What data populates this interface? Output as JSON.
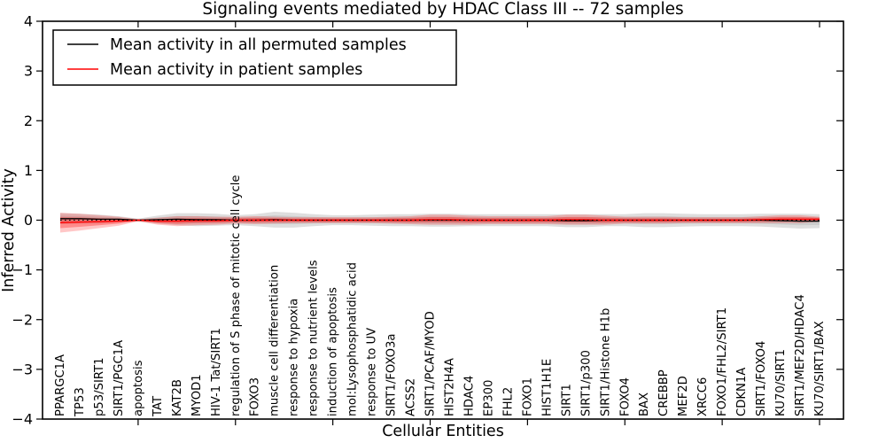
{
  "figure": {
    "title": "Signaling events mediated by HDAC Class III -- 72 samples",
    "xlabel": "Cellular Entities",
    "ylabel": "Inferred Activity"
  },
  "legend": {
    "position": "upper left",
    "entries": [
      {
        "label": "Mean activity in all permuted samples",
        "color": "#000000"
      },
      {
        "label": "Mean activity in patient samples",
        "color": "#ff0000"
      }
    ]
  },
  "chart_data": {
    "type": "line",
    "title": "Signaling events mediated by HDAC Class III -- 72 samples",
    "xlabel": "Cellular Entities",
    "ylabel": "Inferred Activity",
    "ylim": [
      -4,
      4
    ],
    "yticks": [
      4,
      3,
      2,
      1,
      0,
      -1,
      -2,
      -3,
      -4
    ],
    "ytick_labels": [
      "4",
      "3",
      "2",
      "1",
      "0",
      "−1",
      "−2",
      "−3",
      "−4"
    ],
    "grid": false,
    "legend_position": "upper left",
    "zero_line": {
      "y": 0,
      "style": "dotted",
      "color": "#000000"
    },
    "categories": [
      "PPARGC1A",
      "TP53",
      "p53/SIRT1",
      "SIRT1/PGC1A",
      "apoptosis",
      "TAT",
      "KAT2B",
      "MYOD1",
      "HIV-1 Tat/SIRT1",
      "regulation of S phase of mitotic cell cycle",
      "FOXO3",
      "muscle cell differentiation",
      "response to hypoxia",
      "response to nutrient levels",
      "induction of apoptosis",
      "mol:Lysophosphatidic acid",
      "response to UV",
      "SIRT1/FOXO3a",
      "ACSS2",
      "SIRT1/PCAF/MYOD",
      "HIST2H4A",
      "HDAC4",
      "EP300",
      "FHL2",
      "FOXO1",
      "HIST1H1E",
      "SIRT1",
      "SIRT1/p300",
      "SIRT1/Histone H1b",
      "FOXO4",
      "BAX",
      "CREBBP",
      "MEF2D",
      "XRCC6",
      "FOXO1/FHL2/SIRT1",
      "CDKN1A",
      "SIRT1/FOXO4",
      "KU70/SIRT1",
      "SIRT1/MEF2D/HDAC4",
      "KU70/SIRT1/BAX"
    ],
    "series": [
      {
        "name": "Mean activity in all permuted samples",
        "color": "#000000",
        "band_color": "#000000",
        "values": [
          0.03,
          0.03,
          0.02,
          0.02,
          0.0,
          0.01,
          0.02,
          0.01,
          0.01,
          0.0,
          0.0,
          0.01,
          0.0,
          0.0,
          0.0,
          0.0,
          0.0,
          0.0,
          0.0,
          0.0,
          0.0,
          0.0,
          0.0,
          0.0,
          0.0,
          0.0,
          -0.01,
          -0.01,
          0.0,
          0.0,
          0.0,
          0.0,
          0.0,
          0.0,
          0.0,
          0.0,
          0.0,
          -0.01,
          -0.02,
          -0.02
        ],
        "band_halfwidth": [
          0.11,
          0.1,
          0.09,
          0.06,
          0.03,
          0.08,
          0.12,
          0.13,
          0.12,
          0.1,
          0.12,
          0.16,
          0.15,
          0.12,
          0.1,
          0.1,
          0.11,
          0.12,
          0.12,
          0.13,
          0.13,
          0.12,
          0.12,
          0.12,
          0.12,
          0.12,
          0.13,
          0.13,
          0.12,
          0.12,
          0.14,
          0.14,
          0.13,
          0.12,
          0.12,
          0.12,
          0.13,
          0.14,
          0.15,
          0.14
        ]
      },
      {
        "name": "Mean activity in patient samples",
        "color": "#ff0000",
        "band_color": "#ff0000",
        "values": [
          -0.05,
          -0.04,
          -0.03,
          -0.02,
          0.0,
          -0.02,
          -0.02,
          -0.01,
          -0.01,
          0.0,
          0.0,
          0.0,
          0.0,
          0.0,
          0.0,
          0.0,
          0.0,
          0.0,
          0.0,
          0.01,
          0.01,
          0.0,
          0.0,
          0.0,
          0.0,
          0.0,
          0.01,
          0.01,
          0.0,
          0.0,
          0.0,
          0.0,
          0.0,
          0.0,
          0.0,
          0.0,
          0.01,
          0.02,
          0.02,
          0.02
        ],
        "band_halfwidth": [
          0.2,
          0.17,
          0.13,
          0.09,
          0.02,
          0.07,
          0.1,
          0.09,
          0.08,
          0.07,
          0.08,
          0.07,
          0.06,
          0.06,
          0.06,
          0.06,
          0.06,
          0.07,
          0.08,
          0.1,
          0.1,
          0.09,
          0.08,
          0.08,
          0.08,
          0.08,
          0.1,
          0.1,
          0.09,
          0.07,
          0.07,
          0.07,
          0.06,
          0.06,
          0.06,
          0.06,
          0.07,
          0.08,
          0.08,
          0.05
        ]
      }
    ]
  }
}
